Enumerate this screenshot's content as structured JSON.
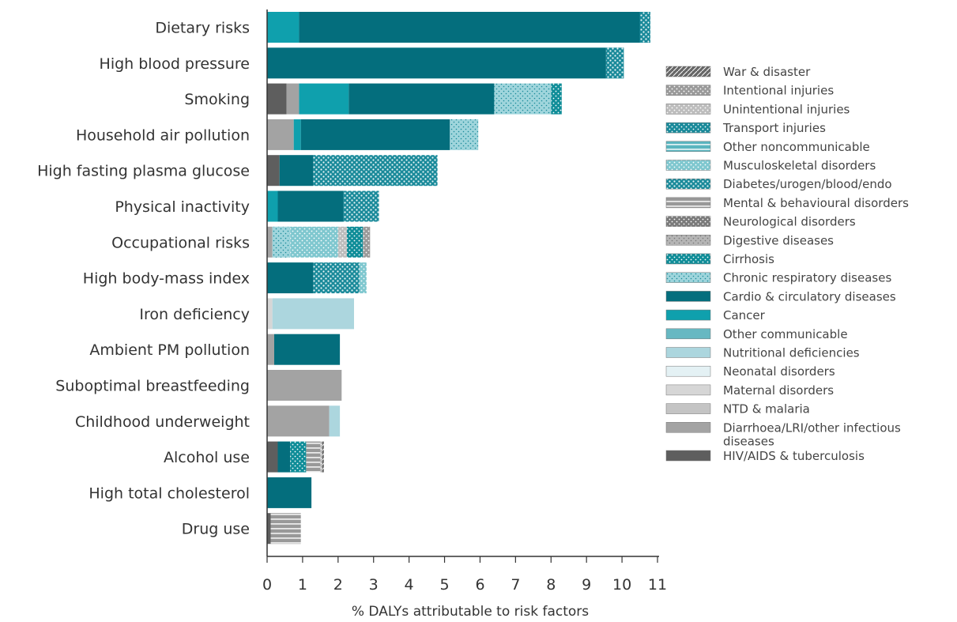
{
  "chart_data": {
    "type": "bar",
    "orientation": "horizontal",
    "stacked": true,
    "title": "",
    "xlabel": "% DALYs attributable to risk factors",
    "ylabel": "",
    "xlim": [
      0,
      11
    ],
    "xticks": [
      "0",
      "1",
      "2",
      "3",
      "4",
      "5",
      "6",
      "7",
      "8",
      "9",
      "10",
      "11"
    ],
    "grid": false,
    "legend_position": "right",
    "legend": [
      {
        "key": "war",
        "label": "War & disaster",
        "color": "#666666",
        "pattern": "hatch"
      },
      {
        "key": "intentional",
        "label": "Intentional injuries",
        "color": "#9a9a9a",
        "pattern": "dots"
      },
      {
        "key": "unintentional",
        "label": "Unintentional injuries",
        "color": "#bdbdbd",
        "pattern": "dots"
      },
      {
        "key": "transport",
        "label": "Transport injuries",
        "color": "#1a8a9a",
        "pattern": "dots"
      },
      {
        "key": "other_ncd",
        "label": "Other noncommunicable",
        "color": "#5ab5bf",
        "pattern": "stripes"
      },
      {
        "key": "musculo",
        "label": "Musculoskeletal disorders",
        "color": "#7fc7cf",
        "pattern": "dots"
      },
      {
        "key": "diabetes",
        "label": "Diabetes/urogen/blood/endo",
        "color": "#1a8a9a",
        "pattern": "dots-light"
      },
      {
        "key": "mental",
        "label": "Mental & behavioural disorders",
        "color": "#999999",
        "pattern": "stripes"
      },
      {
        "key": "neuro",
        "label": "Neurological disorders",
        "color": "#7a7a7a",
        "pattern": "dots"
      },
      {
        "key": "digestive",
        "label": "Digestive diseases",
        "color": "#b5b5b5",
        "pattern": "dots-dark"
      },
      {
        "key": "cirrhosis",
        "label": "Cirrhosis",
        "color": "#0f8d98",
        "pattern": "dots"
      },
      {
        "key": "chronic_resp",
        "label": "Chronic respiratory diseases",
        "color": "#9fd5dc",
        "pattern": "dots-teal"
      },
      {
        "key": "cardio",
        "label": "Cardio & circulatory diseases",
        "color": "#046e7d",
        "pattern": "solid"
      },
      {
        "key": "cancer",
        "label": "Cancer",
        "color": "#0fa0ad",
        "pattern": "solid"
      },
      {
        "key": "other_comm",
        "label": "Other communicable",
        "color": "#67b8c2",
        "pattern": "solid"
      },
      {
        "key": "nutritional",
        "label": "Nutritional deficiencies",
        "color": "#acd6de",
        "pattern": "solid"
      },
      {
        "key": "neonatal",
        "label": "Neonatal disorders",
        "color": "#e4f1f4",
        "pattern": "solid"
      },
      {
        "key": "maternal",
        "label": "Maternal disorders",
        "color": "#d6d6d6",
        "pattern": "solid"
      },
      {
        "key": "ntd",
        "label": "NTD & malaria",
        "color": "#c4c4c4",
        "pattern": "solid"
      },
      {
        "key": "diarrhoea",
        "label": "Diarrhoea/LRI/other infectious diseases",
        "color": "#a3a3a3",
        "pattern": "solid"
      },
      {
        "key": "hiv",
        "label": "HIV/AIDS & tuberculosis",
        "color": "#5e5e5e",
        "pattern": "solid"
      }
    ],
    "categories": [
      "Dietary risks",
      "High blood pressure",
      "Smoking",
      "Household air pollution",
      "High fasting plasma glucose",
      "Physical inactivity",
      "Occupational risks",
      "High body-mass index",
      "Iron deficiency",
      "Ambient PM pollution",
      "Suboptimal breastfeeding",
      "Childhood underweight",
      "Alcohol use",
      "High total cholesterol",
      "Drug use"
    ],
    "bars": [
      {
        "category": "Dietary risks",
        "segments": [
          {
            "key": "cancer",
            "value": 0.9
          },
          {
            "key": "cardio",
            "value": 9.6
          },
          {
            "key": "diabetes",
            "value": 0.3
          }
        ]
      },
      {
        "category": "High blood pressure",
        "segments": [
          {
            "key": "cardio",
            "value": 9.55
          },
          {
            "key": "diabetes",
            "value": 0.5
          }
        ]
      },
      {
        "category": "Smoking",
        "segments": [
          {
            "key": "hiv",
            "value": 0.55
          },
          {
            "key": "diarrhoea",
            "value": 0.35
          },
          {
            "key": "cancer",
            "value": 1.4
          },
          {
            "key": "cardio",
            "value": 4.1
          },
          {
            "key": "chronic_resp",
            "value": 1.6
          },
          {
            "key": "cirrhosis",
            "value": 0.3
          }
        ]
      },
      {
        "category": "Household air pollution",
        "segments": [
          {
            "key": "diarrhoea",
            "value": 0.75
          },
          {
            "key": "cancer",
            "value": 0.2
          },
          {
            "key": "cardio",
            "value": 4.2
          },
          {
            "key": "chronic_resp",
            "value": 0.8
          }
        ]
      },
      {
        "category": "High fasting plasma glucose",
        "segments": [
          {
            "key": "hiv",
            "value": 0.35
          },
          {
            "key": "cardio",
            "value": 0.95
          },
          {
            "key": "diabetes",
            "value": 3.5
          }
        ]
      },
      {
        "category": "Physical inactivity",
        "segments": [
          {
            "key": "cancer",
            "value": 0.3
          },
          {
            "key": "cardio",
            "value": 1.85
          },
          {
            "key": "diabetes",
            "value": 1.0
          }
        ]
      },
      {
        "category": "Occupational risks",
        "segments": [
          {
            "key": "diarrhoea",
            "value": 0.15
          },
          {
            "key": "chronic_resp",
            "value": 0.5
          },
          {
            "key": "musculo",
            "value": 1.35
          },
          {
            "key": "unintentional",
            "value": 0.25
          },
          {
            "key": "cirrhosis",
            "value": 0.45
          },
          {
            "key": "intentional",
            "value": 0.2
          }
        ]
      },
      {
        "category": "High body-mass index",
        "segments": [
          {
            "key": "cardio",
            "value": 1.3
          },
          {
            "key": "diabetes",
            "value": 1.3
          },
          {
            "key": "musculo",
            "value": 0.2
          }
        ]
      },
      {
        "category": "Iron deficiency",
        "segments": [
          {
            "key": "maternal",
            "value": 0.15
          },
          {
            "key": "nutritional",
            "value": 2.3
          }
        ]
      },
      {
        "category": "Ambient PM pollution",
        "segments": [
          {
            "key": "diarrhoea",
            "value": 0.2
          },
          {
            "key": "cardio",
            "value": 1.85
          }
        ]
      },
      {
        "category": "Suboptimal breastfeeding",
        "segments": [
          {
            "key": "diarrhoea",
            "value": 2.1
          }
        ]
      },
      {
        "category": "Childhood underweight",
        "segments": [
          {
            "key": "diarrhoea",
            "value": 1.75
          },
          {
            "key": "nutritional",
            "value": 0.3
          }
        ]
      },
      {
        "category": "Alcohol use",
        "segments": [
          {
            "key": "hiv",
            "value": 0.3
          },
          {
            "key": "cardio",
            "value": 0.35
          },
          {
            "key": "cirrhosis",
            "value": 0.45
          },
          {
            "key": "mental",
            "value": 0.4
          },
          {
            "key": "unintentional",
            "value": 0.05
          },
          {
            "key": "war",
            "value": 0.05
          }
        ]
      },
      {
        "category": "High total cholesterol",
        "segments": [
          {
            "key": "cardio",
            "value": 1.25
          }
        ]
      },
      {
        "category": "Drug use",
        "segments": [
          {
            "key": "hiv",
            "value": 0.1
          },
          {
            "key": "mental",
            "value": 0.85
          }
        ]
      }
    ]
  }
}
